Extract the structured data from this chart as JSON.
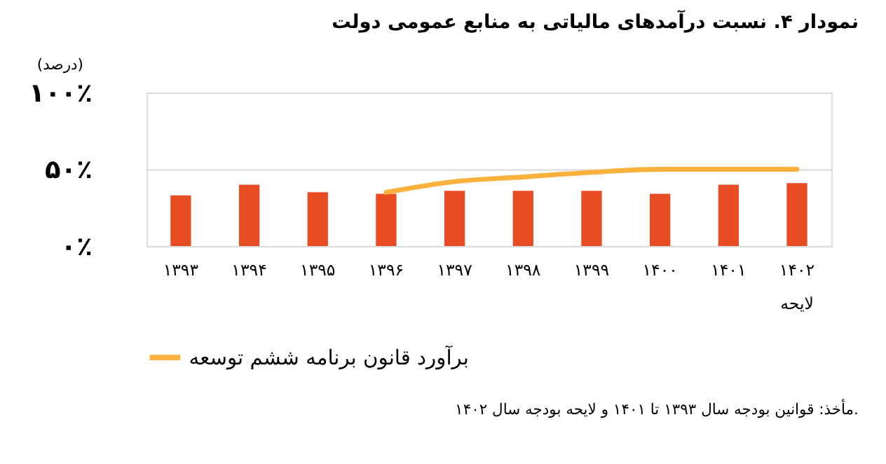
{
  "chart_data": {
    "type": "bar",
    "title": "نمودار ۴. نسبت درآمدهای مالیاتی به منابع عمومی دولت",
    "categories": [
      "۱۳۹۳",
      "۱۳۹۴",
      "۱۳۹۵",
      "۱۳۹۶",
      "۱۳۹۷",
      "۱۳۹۸",
      "۱۳۹۹",
      "۱۴۰۰",
      "۱۴۰۱",
      "۱۴۰۲"
    ],
    "series": [
      {
        "color": "#e84c22",
        "values": [
          33,
          40,
          35,
          34,
          36,
          36,
          36,
          34,
          40,
          41
        ]
      },
      {
        "type": "line",
        "name": "برآورد قانون برنامه ششم توسعه",
        "color": "#fbb13c",
        "values": [
          null,
          null,
          null,
          35,
          42,
          45,
          48,
          50,
          50,
          50
        ]
      }
    ],
    "ylim": [
      0,
      100
    ],
    "yticks": [
      {
        "value": 0,
        "label": "۰٪"
      },
      {
        "value": 50,
        "label": "۵۰٪"
      },
      {
        "value": 100,
        "label": "۱۰۰٪"
      }
    ],
    "grid": "y",
    "legend": "bottom",
    "line_style": "solid",
    "annotations": [
      "(درصد)",
      "مأخذ: قوانین بودجه سال ۱۳۹۳ تا ۱۴۰۱ و لایحه بودجه سال ۱۴۰۲.",
      "لایحه"
    ]
  }
}
